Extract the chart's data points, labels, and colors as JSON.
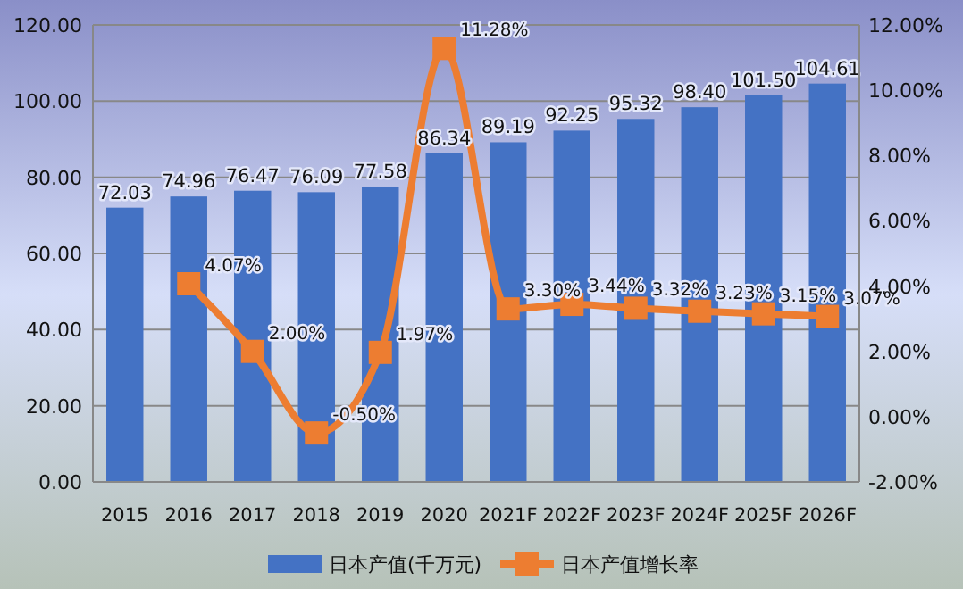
{
  "chart_data": {
    "type": "bar",
    "categories": [
      "2015",
      "2016",
      "2017",
      "2018",
      "2019",
      "2020",
      "2021F",
      "2022F",
      "2023F",
      "2024F",
      "2025F",
      "2026F"
    ],
    "series": [
      {
        "name": "日本产值(千万元)",
        "color": "#4472c4",
        "values": [
          72.03,
          74.96,
          76.47,
          76.09,
          77.58,
          86.34,
          89.19,
          92.25,
          95.32,
          98.4,
          101.5,
          104.61
        ],
        "value_labels": [
          "72.03",
          "74.96",
          "76.47",
          "76.09",
          "77.58",
          "86.34",
          "89.19",
          "92.25",
          "95.32",
          "98.40",
          "101.50",
          "104.61"
        ]
      },
      {
        "name": "日本产值增长率",
        "type": "line",
        "axis": "y2",
        "color": "#ed7d31",
        "values": [
          null,
          4.07,
          2.0,
          -0.5,
          1.97,
          11.28,
          3.3,
          3.44,
          3.32,
          3.23,
          3.15,
          3.07
        ],
        "value_labels": [
          null,
          "4.07%",
          "2.00%",
          "-0.50%",
          "1.97%",
          "11.28%",
          "3.30%",
          "3.44%",
          "3.32%",
          "3.23%",
          "3.15%",
          "3.07%"
        ]
      }
    ],
    "ylim": [
      0,
      120
    ],
    "yticks": [
      {
        "value": 0,
        "label": "0.00"
      },
      {
        "value": 20,
        "label": "20.00"
      },
      {
        "value": 40,
        "label": "40.00"
      },
      {
        "value": 60,
        "label": "60.00"
      },
      {
        "value": 80,
        "label": "80.00"
      },
      {
        "value": 100,
        "label": "100.00"
      },
      {
        "value": 120,
        "label": "120.00"
      }
    ],
    "y2lim": [
      -2,
      12
    ],
    "y2ticks": [
      {
        "value": -2,
        "label": "-2.00%"
      },
      {
        "value": 0,
        "label": "0.00%"
      },
      {
        "value": 2,
        "label": "2.00%"
      },
      {
        "value": 4,
        "label": "4.00%"
      },
      {
        "value": 6,
        "label": "6.00%"
      },
      {
        "value": 8,
        "label": "8.00%"
      },
      {
        "value": 10,
        "label": "10.00%"
      },
      {
        "value": 12,
        "label": "12.00%"
      }
    ],
    "grid": "y",
    "legend": "bottom",
    "marker": "square",
    "line_style": "solid"
  }
}
